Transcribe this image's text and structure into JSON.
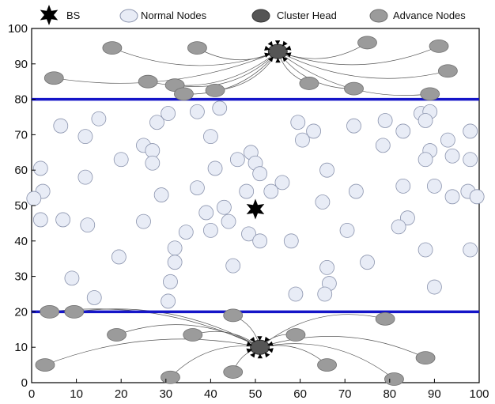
{
  "chart_data": {
    "type": "scatter",
    "title": "",
    "xlabel": "",
    "ylabel": "",
    "xlim": [
      0,
      100
    ],
    "ylim": [
      0,
      100
    ],
    "xticks": [
      0,
      10,
      20,
      30,
      40,
      50,
      60,
      70,
      80,
      90,
      100
    ],
    "yticks": [
      0,
      10,
      20,
      30,
      40,
      50,
      60,
      70,
      80,
      90,
      100
    ],
    "grid": false,
    "legend": {
      "placement": "top",
      "entries": [
        {
          "label": "BS",
          "marker": "star",
          "color": "#000000"
        },
        {
          "label": "Normal Nodes",
          "marker": "ellipse",
          "color": "#e8ecf6"
        },
        {
          "label": "Cluster Head",
          "marker": "ellipse",
          "color": "#555555"
        },
        {
          "label": "Advance Nodes",
          "marker": "ellipse",
          "color": "#9b9b9b"
        }
      ]
    },
    "colors": {
      "normal_fill": "#e8ecf6",
      "normal_stroke": "#8a93ad",
      "advance_fill": "#9b9b9b",
      "advance_stroke": "#6f6f6f",
      "cluster_head_fill": "#555555",
      "boundary_line": "#1515c8",
      "link_line": "#555555",
      "base_station": "#000000"
    },
    "boundaries": [
      {
        "y": 80
      },
      {
        "y": 20
      }
    ],
    "base_station": {
      "x": 50,
      "y": 49
    },
    "cluster_heads": [
      {
        "x": 55,
        "y": 93.5
      },
      {
        "x": 51,
        "y": 10
      }
    ],
    "normal_nodes": [
      {
        "x": 6.5,
        "y": 72.5
      },
      {
        "x": 12,
        "y": 69.5
      },
      {
        "x": 15,
        "y": 74.5
      },
      {
        "x": 2,
        "y": 60.5
      },
      {
        "x": 12,
        "y": 58
      },
      {
        "x": 20,
        "y": 63
      },
      {
        "x": 2.5,
        "y": 54
      },
      {
        "x": 0.5,
        "y": 52
      },
      {
        "x": 2,
        "y": 46
      },
      {
        "x": 7,
        "y": 46
      },
      {
        "x": 12.5,
        "y": 44.5
      },
      {
        "x": 19.5,
        "y": 35.5
      },
      {
        "x": 9,
        "y": 29.5
      },
      {
        "x": 14,
        "y": 24
      },
      {
        "x": 25,
        "y": 67
      },
      {
        "x": 28,
        "y": 73.5
      },
      {
        "x": 30.5,
        "y": 76
      },
      {
        "x": 37,
        "y": 76.5
      },
      {
        "x": 42,
        "y": 77.5
      },
      {
        "x": 40,
        "y": 69.5
      },
      {
        "x": 27,
        "y": 65.5
      },
      {
        "x": 27,
        "y": 62
      },
      {
        "x": 41,
        "y": 60.5
      },
      {
        "x": 46,
        "y": 63
      },
      {
        "x": 49,
        "y": 65
      },
      {
        "x": 50,
        "y": 62
      },
      {
        "x": 51,
        "y": 59
      },
      {
        "x": 25,
        "y": 45.5
      },
      {
        "x": 29,
        "y": 53
      },
      {
        "x": 37,
        "y": 55
      },
      {
        "x": 39,
        "y": 48
      },
      {
        "x": 43,
        "y": 49.5
      },
      {
        "x": 44,
        "y": 45.5
      },
      {
        "x": 48,
        "y": 54
      },
      {
        "x": 53.5,
        "y": 54
      },
      {
        "x": 56,
        "y": 56.5
      },
      {
        "x": 34.5,
        "y": 42.5
      },
      {
        "x": 40,
        "y": 43
      },
      {
        "x": 48.5,
        "y": 42
      },
      {
        "x": 51,
        "y": 40
      },
      {
        "x": 58,
        "y": 40
      },
      {
        "x": 32,
        "y": 38
      },
      {
        "x": 32,
        "y": 34
      },
      {
        "x": 45,
        "y": 33
      },
      {
        "x": 31,
        "y": 28.5
      },
      {
        "x": 30.5,
        "y": 23
      },
      {
        "x": 59,
        "y": 25
      },
      {
        "x": 59.5,
        "y": 73.5
      },
      {
        "x": 63,
        "y": 71
      },
      {
        "x": 60.5,
        "y": 68.5
      },
      {
        "x": 72,
        "y": 72.5
      },
      {
        "x": 79,
        "y": 74
      },
      {
        "x": 78.5,
        "y": 67
      },
      {
        "x": 83,
        "y": 71
      },
      {
        "x": 87,
        "y": 76
      },
      {
        "x": 89,
        "y": 76.5
      },
      {
        "x": 88,
        "y": 74
      },
      {
        "x": 93,
        "y": 68.5
      },
      {
        "x": 98,
        "y": 71
      },
      {
        "x": 66,
        "y": 60
      },
      {
        "x": 89,
        "y": 65.5
      },
      {
        "x": 88,
        "y": 63
      },
      {
        "x": 94,
        "y": 64
      },
      {
        "x": 98,
        "y": 63
      },
      {
        "x": 72.5,
        "y": 54
      },
      {
        "x": 83,
        "y": 55.5
      },
      {
        "x": 90,
        "y": 55.5
      },
      {
        "x": 94,
        "y": 52.5
      },
      {
        "x": 97.5,
        "y": 54
      },
      {
        "x": 99.5,
        "y": 52.5
      },
      {
        "x": 65,
        "y": 51
      },
      {
        "x": 84,
        "y": 46.5
      },
      {
        "x": 82,
        "y": 44
      },
      {
        "x": 70.5,
        "y": 43
      },
      {
        "x": 88,
        "y": 37.5
      },
      {
        "x": 98,
        "y": 37.5
      },
      {
        "x": 75,
        "y": 34
      },
      {
        "x": 66,
        "y": 32.5
      },
      {
        "x": 66.5,
        "y": 28
      },
      {
        "x": 65.5,
        "y": 25
      },
      {
        "x": 90,
        "y": 27
      }
    ],
    "advance_nodes": [
      {
        "x": 18,
        "y": 94.5
      },
      {
        "x": 37,
        "y": 94.5
      },
      {
        "x": 5,
        "y": 86
      },
      {
        "x": 26,
        "y": 85
      },
      {
        "x": 32,
        "y": 84
      },
      {
        "x": 34,
        "y": 81.5
      },
      {
        "x": 41,
        "y": 82.5
      },
      {
        "x": 62,
        "y": 84.5
      },
      {
        "x": 72,
        "y": 83
      },
      {
        "x": 75,
        "y": 96
      },
      {
        "x": 91,
        "y": 95
      },
      {
        "x": 93,
        "y": 88
      },
      {
        "x": 89,
        "y": 81.5
      },
      {
        "x": 4,
        "y": 20
      },
      {
        "x": 9.5,
        "y": 20
      },
      {
        "x": 19,
        "y": 13.5
      },
      {
        "x": 36,
        "y": 13.5
      },
      {
        "x": 45,
        "y": 19
      },
      {
        "x": 59,
        "y": 13.5
      },
      {
        "x": 79,
        "y": 18
      },
      {
        "x": 88,
        "y": 7
      },
      {
        "x": 3,
        "y": 5
      },
      {
        "x": 31,
        "y": 1.5
      },
      {
        "x": 45,
        "y": 3
      },
      {
        "x": 66,
        "y": 5
      },
      {
        "x": 81,
        "y": 1
      }
    ]
  }
}
